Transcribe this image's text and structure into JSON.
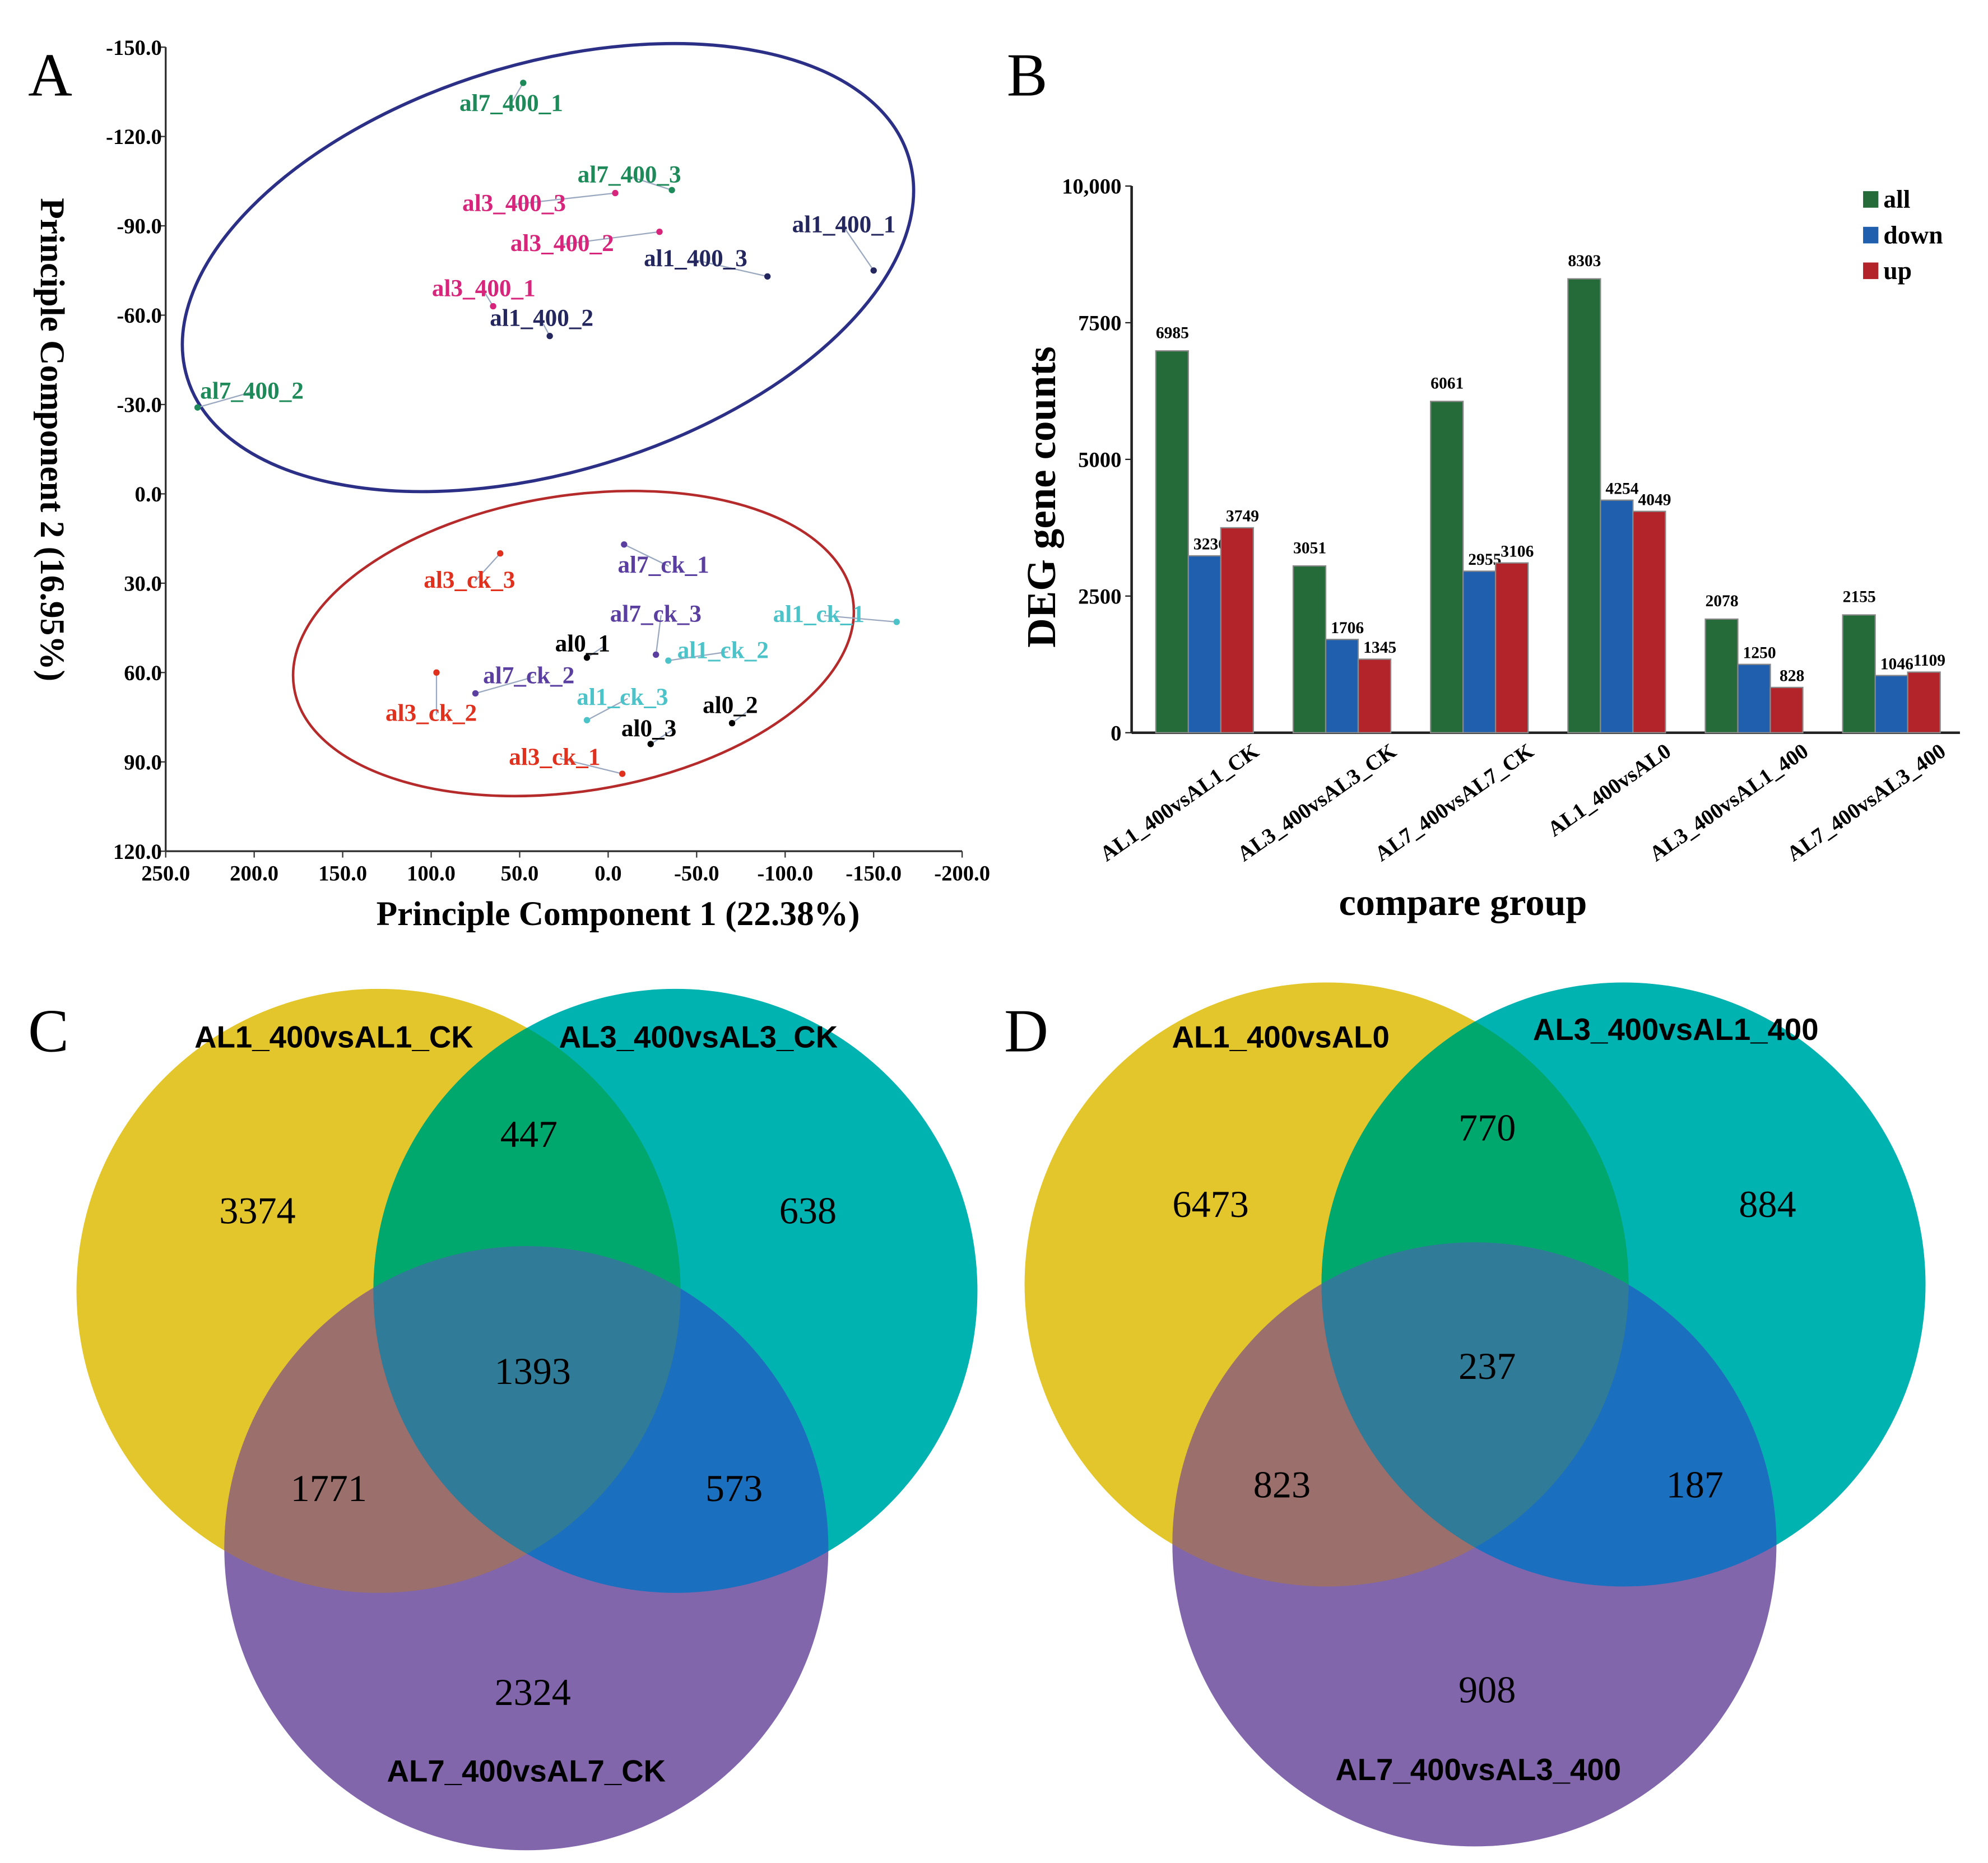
{
  "panels": {
    "a": "A",
    "b": "B",
    "c": "C",
    "d": "D"
  },
  "colors": {
    "blue_ellipse": "#2b2f86",
    "red_ellipse": "#b52a2a",
    "all": "#256b3a",
    "down": "#1f5fae",
    "up": "#b3232a",
    "venn_a": "#e3c62b",
    "venn_b": "#00b2b0",
    "venn_c": "#8266ac",
    "ab": "#00a86d",
    "ac": "#9b6f6b",
    "bc": "#1b6fbf",
    "abc": "#307c98"
  },
  "chart_data": [
    {
      "type": "scatter",
      "title": "",
      "xlabel": "Principle Component 1 (22.38%)",
      "ylabel": "Principle Component 2 (16.95%)",
      "xlim": [
        250,
        -200
      ],
      "ylim": [
        -150,
        120
      ],
      "xticks": [
        "250.0",
        "200.0",
        "150.0",
        "100.0",
        "50.0",
        "0.0",
        "-50.0",
        "-100.0",
        "-150.0",
        "-200.0"
      ],
      "yticks": [
        "-150.0",
        "-120.0",
        "-90.0",
        "-60.0",
        "-30.0",
        "0.0",
        "30.0",
        "60.0",
        "90.0",
        "120.0"
      ],
      "points": [
        {
          "label": "al7_400_1",
          "x": 48,
          "y": -138,
          "color": "#1e8a5a"
        },
        {
          "label": "al7_400_3",
          "x": -36,
          "y": -102,
          "color": "#1e8a5a"
        },
        {
          "label": "al3_400_3",
          "x": -4,
          "y": -101,
          "color": "#d6257a"
        },
        {
          "label": "al3_400_2",
          "x": -29,
          "y": -88,
          "color": "#d6257a"
        },
        {
          "label": "al1_400_3",
          "x": -90,
          "y": -73,
          "color": "#24265e"
        },
        {
          "label": "al1_400_1",
          "x": -150,
          "y": -75,
          "color": "#24265e"
        },
        {
          "label": "al3_400_1",
          "x": 65,
          "y": -63,
          "color": "#d6257a"
        },
        {
          "label": "al1_400_2",
          "x": 33,
          "y": -53,
          "color": "#24265e"
        },
        {
          "label": "al7_400_2",
          "x": 232,
          "y": -29,
          "color": "#1e8a5a"
        },
        {
          "label": "al3_ck_3",
          "x": 61,
          "y": 20,
          "color": "#e0301e"
        },
        {
          "label": "al7_ck_1",
          "x": -9,
          "y": 17,
          "color": "#5a3fa0"
        },
        {
          "label": "al1_ck_1",
          "x": -163,
          "y": 43,
          "color": "#4cc3c8"
        },
        {
          "label": "al0_1",
          "x": 12,
          "y": 55,
          "color": "#000000"
        },
        {
          "label": "al7_ck_3",
          "x": -27,
          "y": 54,
          "color": "#5a3fa0"
        },
        {
          "label": "al1_ck_2",
          "x": -34,
          "y": 56,
          "color": "#4cc3c8"
        },
        {
          "label": "al3_ck_2",
          "x": 97,
          "y": 60,
          "color": "#e0301e"
        },
        {
          "label": "al7_ck_2",
          "x": 75,
          "y": 67,
          "color": "#5a3fa0"
        },
        {
          "label": "al1_ck_3",
          "x": 12,
          "y": 76,
          "color": "#4cc3c8"
        },
        {
          "label": "al0_2",
          "x": -70,
          "y": 77,
          "color": "#000000"
        },
        {
          "label": "al0_3",
          "x": -24,
          "y": 84,
          "color": "#000000"
        },
        {
          "label": "al3_ck_1",
          "x": -8,
          "y": 94,
          "color": "#e0301e"
        }
      ]
    },
    {
      "type": "bar",
      "title": "",
      "xlabel": "compare group",
      "ylabel": "DEG gene counts",
      "ylim": [
        0,
        10000
      ],
      "yticks": [
        "0",
        "2500",
        "5000",
        "7500",
        "10,000"
      ],
      "categories": [
        "AL1_400vsAL1_CK",
        "AL3_400vsAL3_CK",
        "AL7_400vsAL7_CK",
        "AL1_400vsAL0",
        "AL3_400vsAL1_400",
        "AL7_400vsAL3_400"
      ],
      "legend_position": "top-right",
      "series": [
        {
          "name": "all",
          "values": [
            6985,
            3051,
            6061,
            8303,
            2078,
            2155
          ]
        },
        {
          "name": "down",
          "values": [
            3236,
            1706,
            2955,
            4254,
            1250,
            1046
          ]
        },
        {
          "name": "up",
          "values": [
            3749,
            1345,
            3106,
            4049,
            828,
            1109
          ]
        }
      ]
    }
  ],
  "venn_c": {
    "titles": [
      "AL1_400vsAL1_CK",
      "AL3_400vsAL3_CK",
      "AL7_400vsAL7_CK"
    ],
    "a_only": "3374",
    "b_only": "638",
    "c_only": "2324",
    "ab": "447",
    "ac": "1771",
    "bc": "573",
    "abc": "1393"
  },
  "venn_d": {
    "titles": [
      "AL1_400vsAL0",
      "AL3_400vsAL1_400",
      "AL7_400vsAL3_400"
    ],
    "a_only": "6473",
    "b_only": "884",
    "c_only": "908",
    "ab": "770",
    "ac": "823",
    "bc": "187",
    "abc": "237"
  }
}
